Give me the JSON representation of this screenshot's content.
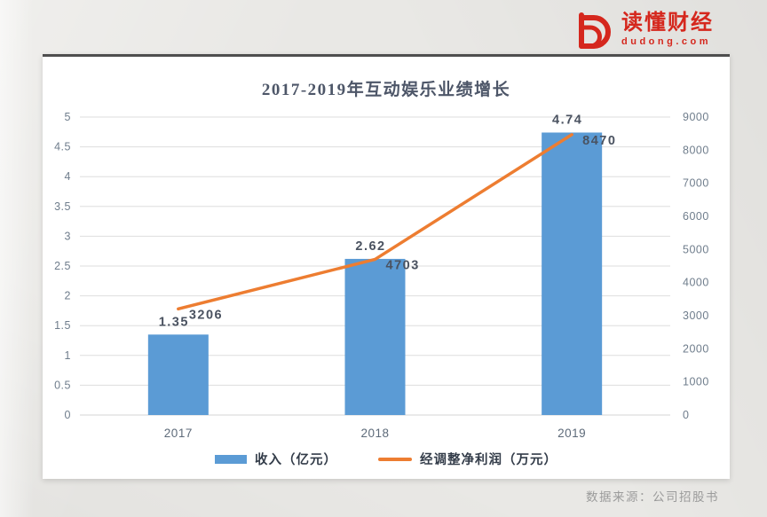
{
  "brand": {
    "name": "读懂财经",
    "domain": "dudong.com",
    "color": "#d5271d"
  },
  "source_note": "数据来源：公司招股书",
  "chart_data": {
    "type": "bar",
    "subtype": "combo-bar-line",
    "title": "2017-2019年互动娱乐业绩增长",
    "categories": [
      "2017",
      "2018",
      "2019"
    ],
    "series": [
      {
        "name": "收入（亿元）",
        "type": "bar",
        "axis": "left",
        "color": "#5b9bd5",
        "values": [
          1.35,
          2.62,
          4.74
        ],
        "labels": [
          "1.35",
          "2.62",
          "4.74"
        ]
      },
      {
        "name": "经调整净利润（万元）",
        "type": "line",
        "axis": "right",
        "color": "#ed7d31",
        "values": [
          3206,
          4703,
          8470
        ],
        "labels": [
          "3206",
          "4703",
          "8470"
        ]
      }
    ],
    "left_axis": {
      "min": 0,
      "max": 5,
      "ticks": [
        "5",
        "4.5",
        "4",
        "3.5",
        "3",
        "2.5",
        "2",
        "1.5",
        "1",
        "0.5",
        "0"
      ]
    },
    "right_axis": {
      "min": 0,
      "max": 9000,
      "ticks": [
        "9000",
        "8000",
        "7000",
        "6000",
        "5000",
        "4000",
        "3000",
        "2000",
        "1000",
        "0"
      ]
    },
    "grid": true,
    "legend_position": "bottom"
  }
}
